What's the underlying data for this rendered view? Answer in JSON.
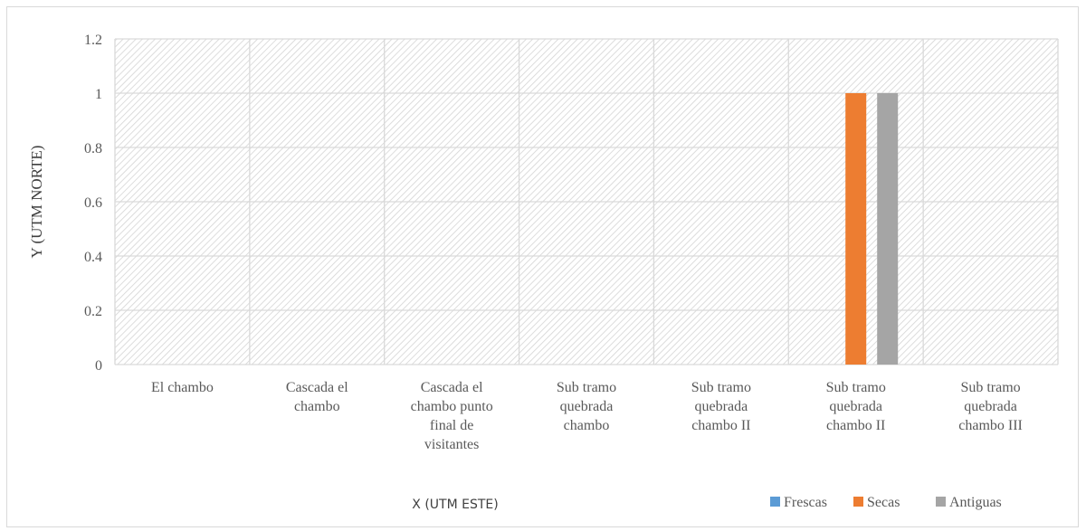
{
  "chart_data": {
    "type": "bar",
    "title": "",
    "xlabel": "X (UTM ESTE)",
    "ylabel": "Y (UTM NORTE)",
    "ylim": [
      0,
      1.2
    ],
    "yticks": [
      "0",
      "0.2",
      "0.4",
      "0.6",
      "0.8",
      "1",
      "1.2"
    ],
    "categories": [
      [
        "El chambo"
      ],
      [
        "Cascada el",
        "chambo"
      ],
      [
        "Cascada el",
        "chambo punto",
        "final de",
        "visitantes"
      ],
      [
        "Sub tramo",
        "quebrada",
        "chambo"
      ],
      [
        "Sub tramo",
        "quebrada",
        "chambo II"
      ],
      [
        "Sub tramo",
        "quebrada",
        "chambo II"
      ],
      [
        "Sub tramo",
        "quebrada",
        "chambo III"
      ]
    ],
    "series": [
      {
        "name": "Frescas",
        "color": "#5b9bd5",
        "values": [
          0,
          0,
          0,
          0,
          0,
          0,
          0
        ]
      },
      {
        "name": "Secas",
        "color": "#ed7d31",
        "values": [
          0,
          0,
          0,
          0,
          0,
          1,
          0
        ]
      },
      {
        "name": "Antiguas",
        "color": "#a5a5a5",
        "values": [
          0,
          0,
          0,
          0,
          0,
          1,
          0
        ]
      }
    ],
    "grid": true,
    "legend_position": "bottom-right",
    "background_pattern": "diagonal-hatch"
  }
}
